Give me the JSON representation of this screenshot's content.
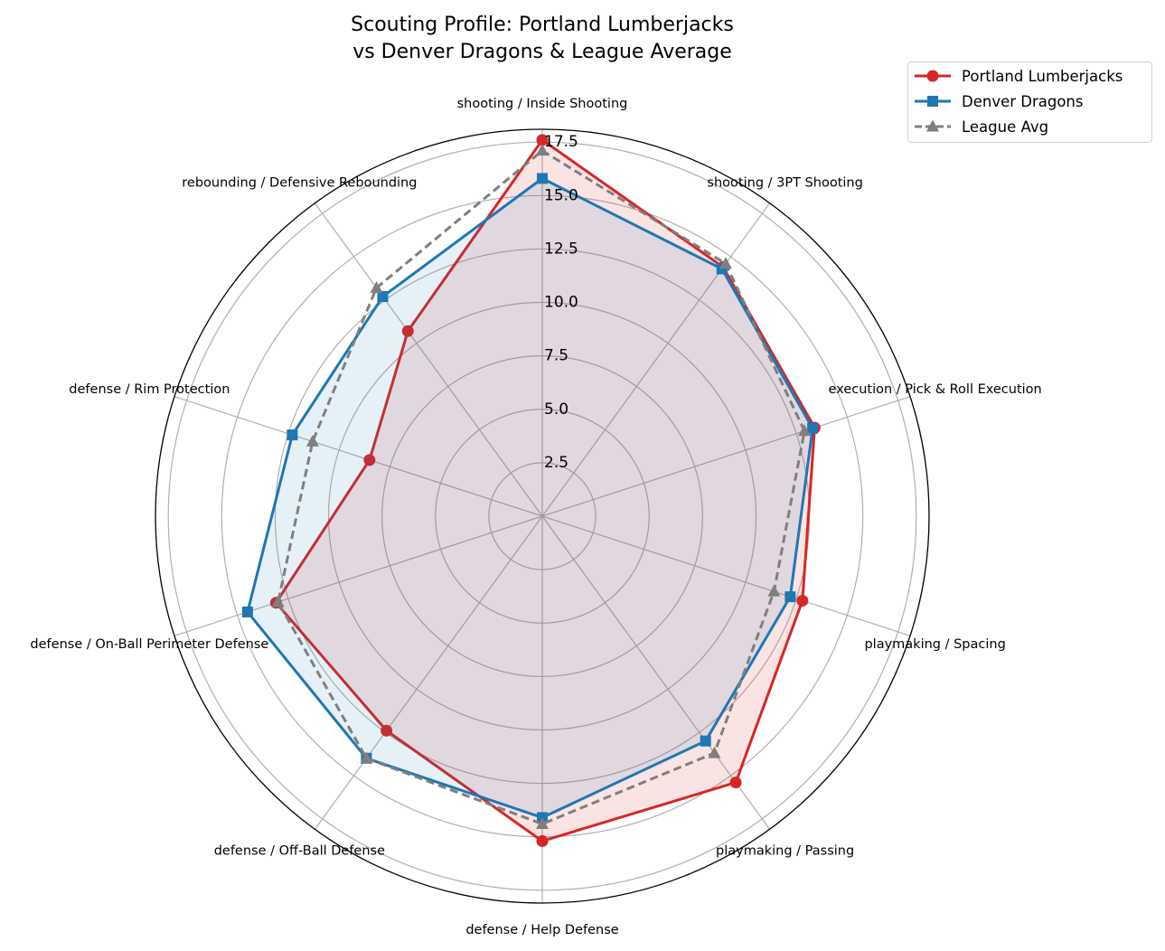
{
  "chart_data": {
    "type": "radar",
    "title": "Scouting Profile: Portland Lumberjacks\nvs Denver Dragons & League Average",
    "categories": [
      "shooting / Inside Shooting",
      "shooting / 3PT Shooting",
      "execution / Pick & Roll Execution",
      "playmaking / Spacing",
      "playmaking / Passing",
      "defense / Help Defense",
      "defense / Off-Ball Defense",
      "defense / On-Ball Perimeter Defense",
      "defense / Rim Protection",
      "rebounding / Defensive Rebounding"
    ],
    "rlim": [
      0,
      18.1
    ],
    "rticks": [
      "2.5",
      "5.0",
      "7.5",
      "10.0",
      "12.5",
      "15.0",
      "17.5"
    ],
    "grid": true,
    "legend_position": "top-right",
    "series": [
      {
        "name": "Portland Lumberjacks",
        "color": "#d62728",
        "marker": "circle",
        "linestyle": "solid",
        "fill": true,
        "values": [
          17.6,
          14.4,
          13.4,
          12.8,
          15.4,
          15.2,
          12.4,
          13.1,
          8.5,
          10.7
        ]
      },
      {
        "name": "Denver Dragons",
        "color": "#1f77b4",
        "marker": "square",
        "linestyle": "solid",
        "fill": true,
        "values": [
          15.8,
          14.3,
          13.3,
          12.2,
          13.0,
          14.1,
          14.0,
          14.5,
          12.3,
          12.7
        ]
      },
      {
        "name": "League Avg",
        "color": "#7f7f7f",
        "marker": "triangle",
        "linestyle": "dashed",
        "fill": false,
        "values": [
          17.1,
          14.6,
          12.9,
          11.4,
          13.7,
          14.4,
          14.0,
          13.0,
          11.3,
          13.2
        ]
      }
    ]
  }
}
